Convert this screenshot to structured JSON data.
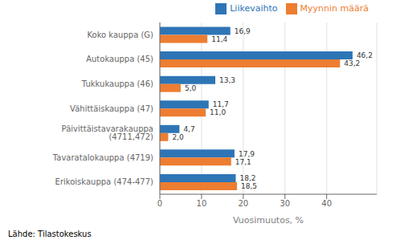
{
  "chart_data": {
    "type": "bar",
    "orientation": "horizontal",
    "categories": [
      "Erikoiskauppa (474-477)",
      "Tavaratalokauppa (4719)",
      "Päivittäistavarakauppa (4711,472)",
      "Vähittäiskauppa (47)",
      "Tukkukauppa (46)",
      "Autokauppa (45)",
      "Koko kauppa (G)"
    ],
    "series": [
      {
        "name": "Liikevaihto",
        "color": "#2E75B6",
        "values": [
          18.2,
          17.9,
          4.7,
          11.7,
          13.3,
          46.2,
          16.9
        ],
        "value_labels": [
          "18,2",
          "17,9",
          "4,7",
          "11,7",
          "13,3",
          "46,2",
          "16,9"
        ]
      },
      {
        "name": "Myynnin määrä",
        "color": "#ED7D31",
        "values": [
          18.5,
          17.1,
          2.0,
          11.0,
          5.0,
          43.2,
          11.4
        ],
        "value_labels": [
          "18,5",
          "17,1",
          "2,0",
          "11,0",
          "5,0",
          "43,2",
          "11,4"
        ]
      }
    ],
    "xlabel": "Vuosimuutos, %",
    "xlim": [
      0,
      52
    ],
    "xticks": [
      0,
      10,
      20,
      30,
      40
    ],
    "grid": true,
    "legend": "upper right",
    "data_labels": true,
    "annotations": [
      "Lähde: Tilastokeskus"
    ]
  }
}
